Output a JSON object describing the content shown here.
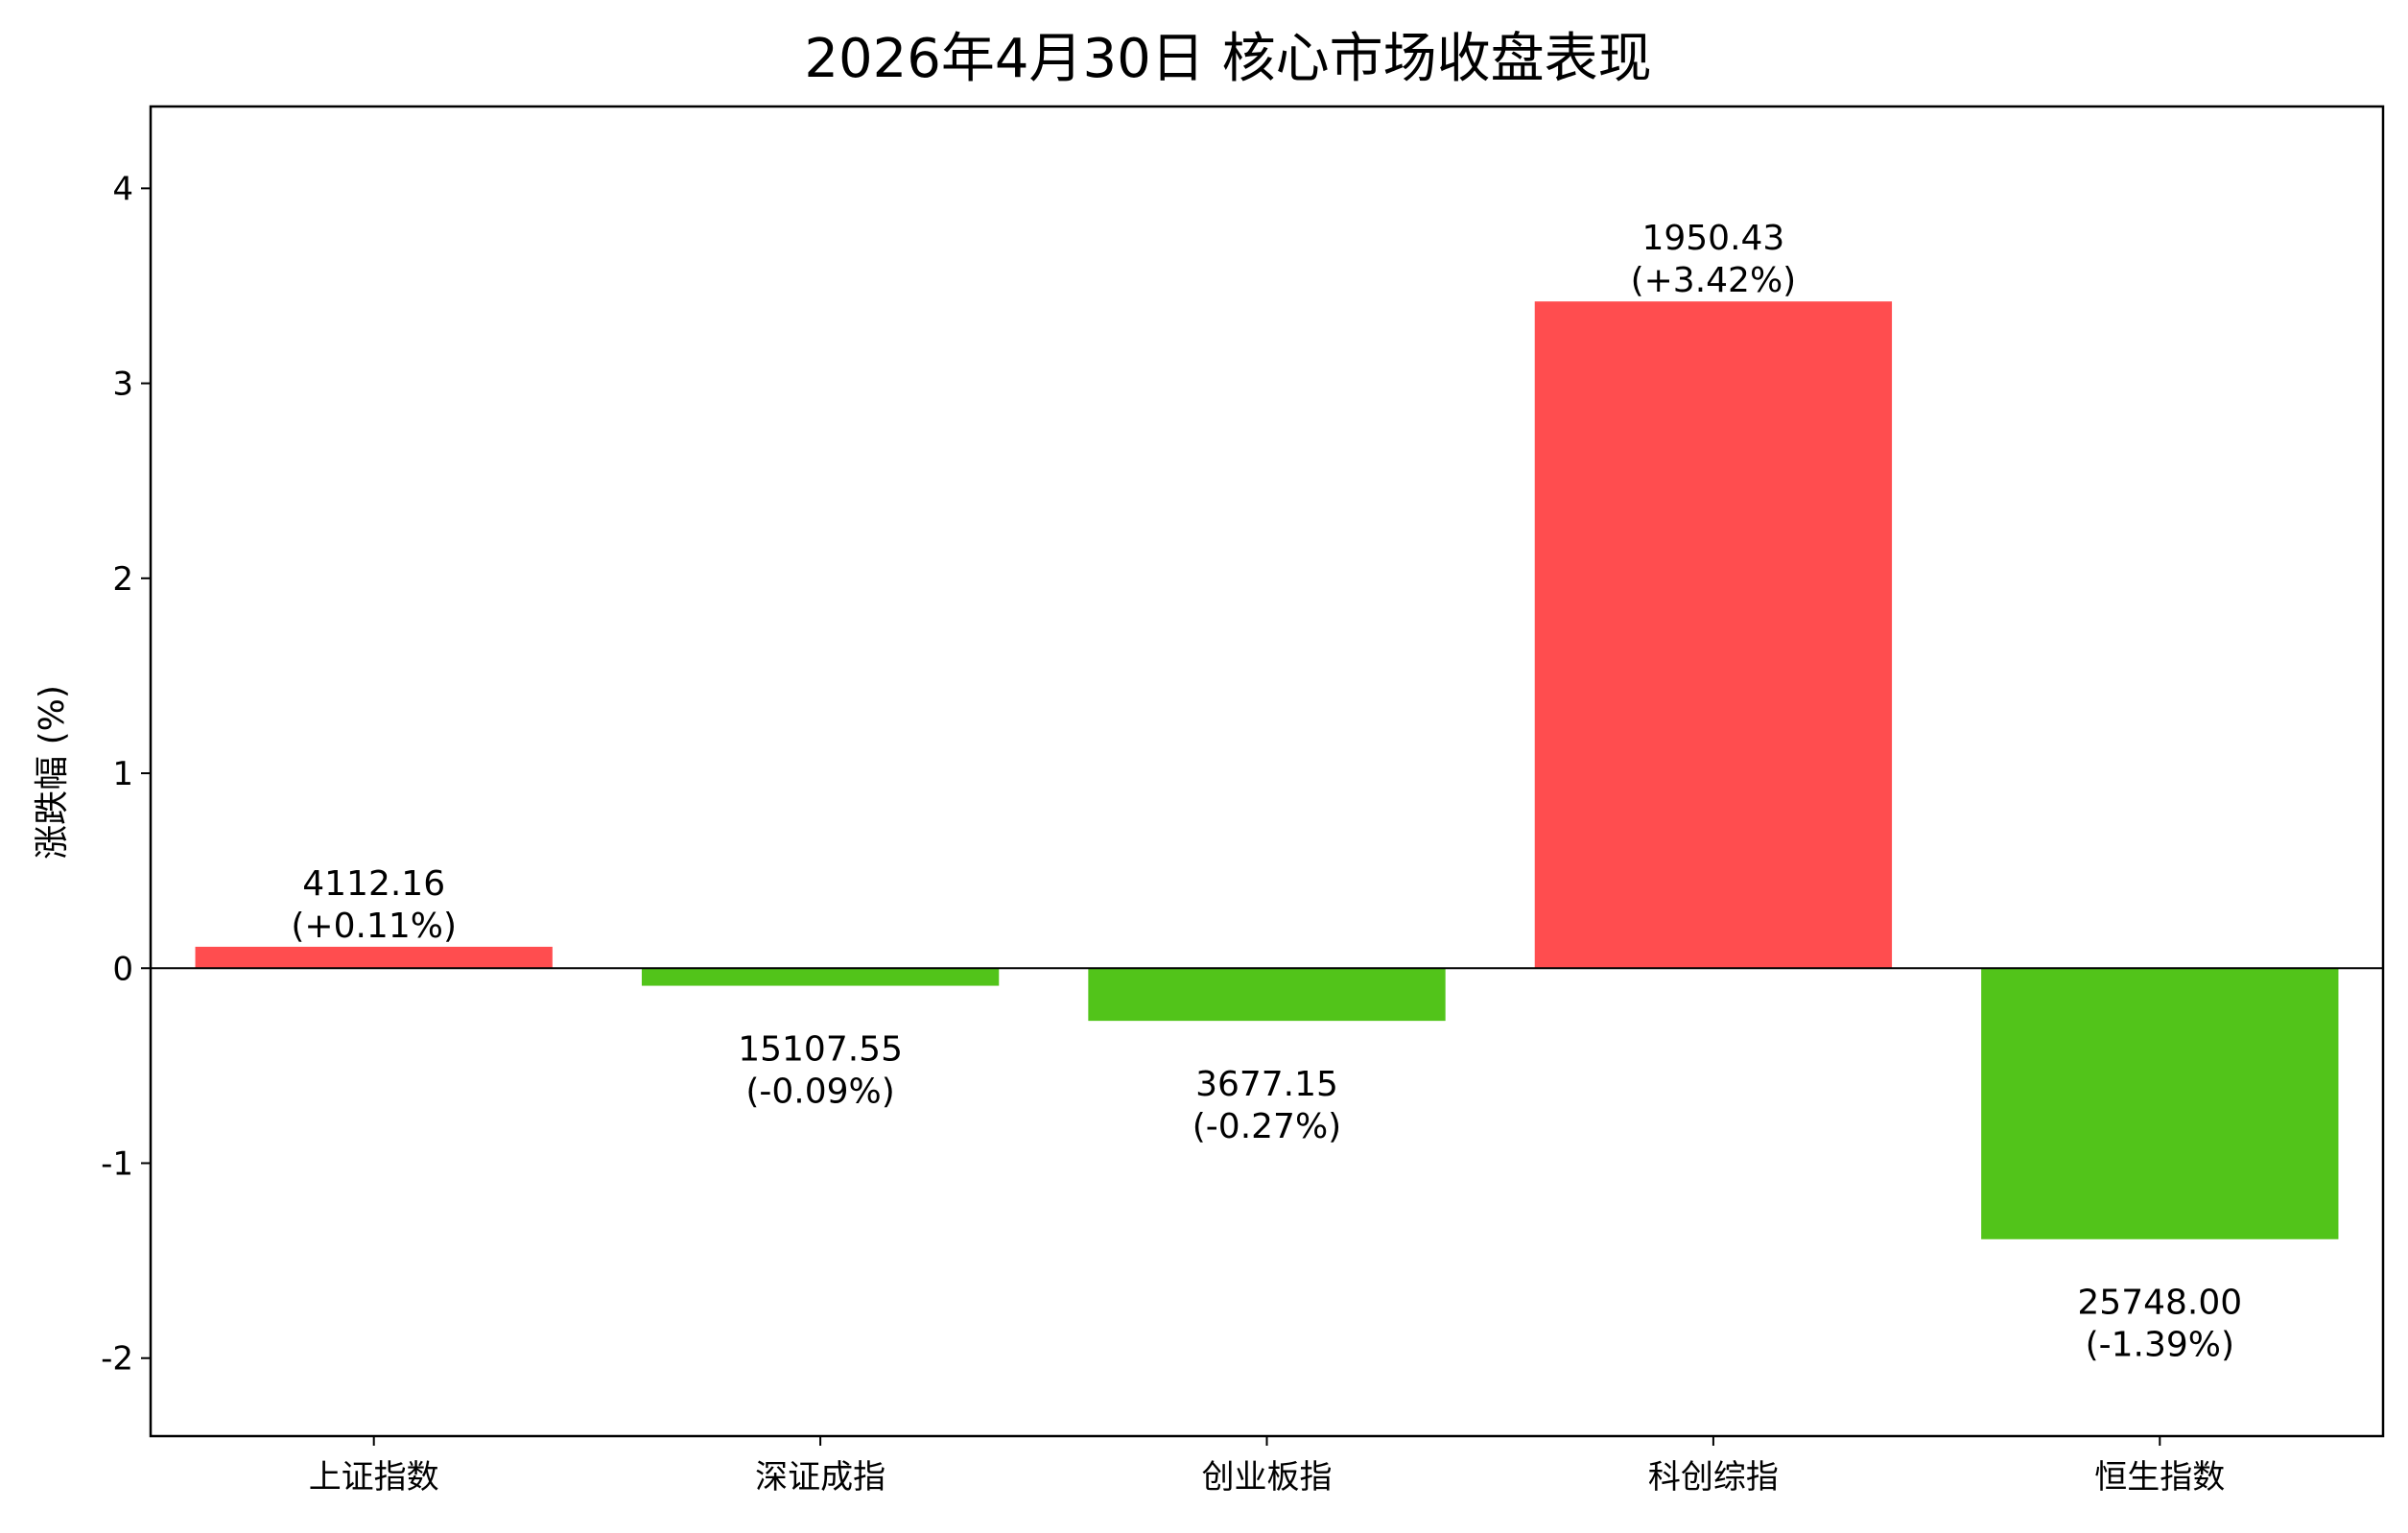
{
  "chart_data": {
    "type": "bar",
    "title": "2026年4月30日 核心市场收盘表现",
    "xlabel": "",
    "ylabel": "涨跌幅 (%)",
    "ylim": [
      -2.4,
      4.42
    ],
    "yticks": [
      -2,
      -1,
      0,
      1,
      2,
      3,
      4
    ],
    "ytick_labels": [
      "-2",
      "-1",
      "0",
      "1",
      "2",
      "3",
      "4"
    ],
    "grid": false,
    "legend": "none",
    "categories": [
      "上证指数",
      "深证成指",
      "创业板指",
      "科创综指",
      "恒生指数"
    ],
    "values": [
      0.11,
      -0.09,
      -0.27,
      3.42,
      -1.39
    ],
    "close_labels": [
      "4112.16",
      "15107.55",
      "3677.15",
      "1950.43",
      "25748.00"
    ],
    "change_labels": [
      "(+0.11%)",
      "(-0.09%)",
      "(-0.27%)",
      "(+3.42%)",
      "(-1.39%)"
    ],
    "colors": {
      "up": "#ff4d4f",
      "down": "#52c41a",
      "axis": "#000000"
    }
  }
}
